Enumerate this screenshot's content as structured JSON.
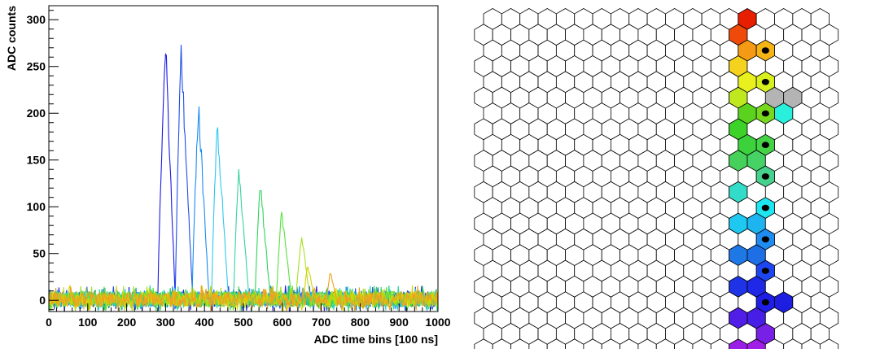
{
  "chart_data": [
    {
      "type": "line",
      "title": "",
      "xlabel": "ADC time bins [100 ns]",
      "ylabel": "ADC counts",
      "xlim": [
        0,
        1000
      ],
      "ylim": [
        -12,
        315
      ],
      "x_ticks": [
        0,
        100,
        200,
        300,
        400,
        500,
        600,
        700,
        800,
        900,
        1000
      ],
      "y_ticks": [
        0,
        50,
        100,
        150,
        200,
        250,
        300
      ],
      "grid": false,
      "legend": "none",
      "noise_range": [
        -12,
        16
      ],
      "series": [
        {
          "color": "#1a1ae6",
          "pulse_start": 280,
          "peak_x": 300,
          "peak": 285,
          "pulse_end": 325
        },
        {
          "color": "#1f4fe8",
          "pulse_start": 325,
          "peak_x": 340,
          "peak": 280,
          "pulse_end": 370
        },
        {
          "color": "#1a8cf0",
          "pulse_start": 368,
          "peak_x": 385,
          "peak": 218,
          "pulse_end": 412
        },
        {
          "color": "#2ec8ee",
          "pulse_start": 418,
          "peak_x": 433,
          "peak": 198,
          "pulse_end": 462
        },
        {
          "color": "#33d4a0",
          "pulse_start": 475,
          "peak_x": 488,
          "peak": 150,
          "pulse_end": 515
        },
        {
          "color": "#2ed45c",
          "pulse_start": 530,
          "peak_x": 543,
          "peak": 132,
          "pulse_end": 570
        },
        {
          "color": "#55e23a",
          "pulse_start": 585,
          "peak_x": 598,
          "peak": 100,
          "pulse_end": 625
        },
        {
          "color": "#a8e020",
          "pulse_start": 635,
          "peak_x": 650,
          "peak": 72,
          "pulse_end": 672
        },
        {
          "color": "#d4d400",
          "pulse_start": 655,
          "peak_x": 665,
          "peak": 40,
          "pulse_end": 685
        },
        {
          "color": "#f0a020",
          "pulse_start": 715,
          "peak_x": 723,
          "peak": 33,
          "pulse_end": 740
        }
      ]
    },
    {
      "type": "heatmap",
      "title": "",
      "grid_cols": 19,
      "grid_rows": 22,
      "cells": [
        {
          "col": 14,
          "row": 0,
          "color": "#e81e00",
          "marker": false
        },
        {
          "col": 14,
          "row": 1,
          "color": "#f04a0a",
          "marker": false
        },
        {
          "col": 14,
          "row": 2,
          "color": "#f59a14",
          "marker": false
        },
        {
          "col": 15,
          "row": 2,
          "color": "#f5b414",
          "marker": true
        },
        {
          "col": 14,
          "row": 3,
          "color": "#f5d21e",
          "marker": false
        },
        {
          "col": 14,
          "row": 4,
          "color": "#e8f01e",
          "marker": false
        },
        {
          "col": 15,
          "row": 4,
          "color": "#d8f01e",
          "marker": true
        },
        {
          "col": 14,
          "row": 5,
          "color": "#c0e81e",
          "marker": false
        },
        {
          "col": 16,
          "row": 5,
          "color": "#b4b4b4",
          "marker": false
        },
        {
          "col": 17,
          "row": 5,
          "color": "#b4b4b4",
          "marker": false
        },
        {
          "col": 14,
          "row": 6,
          "color": "#5ad21e",
          "marker": false
        },
        {
          "col": 15,
          "row": 6,
          "color": "#78d81e",
          "marker": true
        },
        {
          "col": 16,
          "row": 6,
          "color": "#28f0dc",
          "marker": false
        },
        {
          "col": 14,
          "row": 7,
          "color": "#3cd228",
          "marker": false
        },
        {
          "col": 14,
          "row": 8,
          "color": "#3cd23c",
          "marker": false
        },
        {
          "col": 15,
          "row": 8,
          "color": "#46d246",
          "marker": true
        },
        {
          "col": 14,
          "row": 9,
          "color": "#46d25a",
          "marker": false
        },
        {
          "col": 15,
          "row": 9,
          "color": "#46d264",
          "marker": false
        },
        {
          "col": 15,
          "row": 10,
          "color": "#46d28c",
          "marker": true
        },
        {
          "col": 14,
          "row": 11,
          "color": "#32dcc8",
          "marker": false
        },
        {
          "col": 15,
          "row": 12,
          "color": "#1ee6f0",
          "marker": true
        },
        {
          "col": 14,
          "row": 13,
          "color": "#1ec8f0",
          "marker": false
        },
        {
          "col": 15,
          "row": 13,
          "color": "#1eb4f0",
          "marker": false
        },
        {
          "col": 15,
          "row": 14,
          "color": "#1e8cf0",
          "marker": true
        },
        {
          "col": 14,
          "row": 15,
          "color": "#1e78e6",
          "marker": false
        },
        {
          "col": 15,
          "row": 15,
          "color": "#1e6ee6",
          "marker": false
        },
        {
          "col": 15,
          "row": 16,
          "color": "#1e46f0",
          "marker": true
        },
        {
          "col": 14,
          "row": 17,
          "color": "#1e32e6",
          "marker": false
        },
        {
          "col": 15,
          "row": 17,
          "color": "#1e28e6",
          "marker": false
        },
        {
          "col": 15,
          "row": 18,
          "color": "#1e1ee6",
          "marker": true
        },
        {
          "col": 16,
          "row": 18,
          "color": "#1e1ee0",
          "marker": false
        },
        {
          "col": 14,
          "row": 19,
          "color": "#501ee6",
          "marker": false
        },
        {
          "col": 15,
          "row": 19,
          "color": "#461ee6",
          "marker": false
        },
        {
          "col": 15,
          "row": 20,
          "color": "#7820e6",
          "marker": false
        },
        {
          "col": 14,
          "row": 21,
          "color": "#9b1ee6",
          "marker": false
        },
        {
          "col": 15,
          "row": 21,
          "color": "#a01ee6",
          "marker": false
        }
      ]
    }
  ]
}
